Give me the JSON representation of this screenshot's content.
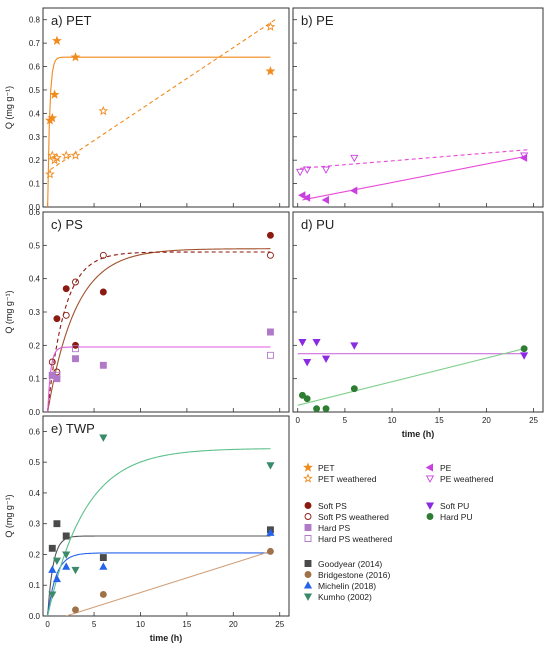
{
  "chart_data": [
    {
      "id": "a",
      "type": "scatter",
      "panel_label": "a) PET",
      "ylabel": "Q (mg g⁻¹)",
      "xlabel": "",
      "xlim": [
        -0.5,
        26
      ],
      "ylim": [
        0,
        0.85
      ],
      "xticks": [
        0,
        5,
        10,
        15,
        20,
        25
      ],
      "show_xticklabels": false,
      "yticks": [
        0,
        0.1,
        0.2,
        0.3,
        0.4,
        0.5,
        0.6,
        0.7,
        0.8
      ],
      "series": [
        {
          "name": "PET",
          "marker": "star",
          "filled": true,
          "color": "#f28a1e",
          "points": [
            [
              0.25,
              0.37
            ],
            [
              0.5,
              0.38
            ],
            [
              0.75,
              0.48
            ],
            [
              1,
              0.71
            ],
            [
              3,
              0.64
            ],
            [
              24,
              0.58
            ]
          ]
        },
        {
          "name": "PET weathered",
          "marker": "star",
          "filled": false,
          "color": "#f28a1e",
          "points": [
            [
              0.25,
              0.14
            ],
            [
              0.5,
              0.22
            ],
            [
              0.75,
              0.2
            ],
            [
              1,
              0.21
            ],
            [
              2,
              0.22
            ],
            [
              3,
              0.22
            ],
            [
              6,
              0.41
            ],
            [
              24,
              0.77
            ]
          ]
        }
      ],
      "fits": [
        {
          "kind": "exp",
          "qmax": 0.64,
          "k": 4.5,
          "color": "#f28a1e",
          "dash": false
        },
        {
          "kind": "linear",
          "from": [
            0.3,
            0.16
          ],
          "to": [
            24.5,
            0.8
          ],
          "color": "#f28a1e",
          "dash": true
        }
      ]
    },
    {
      "id": "b",
      "type": "scatter",
      "panel_label": "b) PE",
      "ylabel": "",
      "xlabel": "",
      "xlim": [
        -0.5,
        26
      ],
      "ylim": [
        0,
        0.85
      ],
      "xticks": [
        0,
        5,
        10,
        15,
        20,
        25
      ],
      "show_xticklabels": false,
      "show_yticklabels": false,
      "yticks": [
        0,
        0.1,
        0.2,
        0.3,
        0.4,
        0.5,
        0.6,
        0.7,
        0.8
      ],
      "series": [
        {
          "name": "PE",
          "marker": "triangle-left",
          "filled": true,
          "color": "#c940e0",
          "points": [
            [
              0.5,
              0.05
            ],
            [
              1,
              0.04
            ],
            [
              3,
              0.03
            ],
            [
              6,
              0.07
            ],
            [
              24,
              0.21
            ]
          ]
        },
        {
          "name": "PE weathered",
          "marker": "triangle-down",
          "filled": false,
          "color": "#c940e0",
          "points": [
            [
              0.25,
              0.15
            ],
            [
              1,
              0.16
            ],
            [
              3,
              0.16
            ],
            [
              6,
              0.21
            ],
            [
              24,
              0.22
            ]
          ]
        }
      ],
      "fits": [
        {
          "kind": "linear",
          "from": [
            0.5,
            0.03
          ],
          "to": [
            24,
            0.215
          ],
          "color": "#e84ad8",
          "dash": false
        },
        {
          "kind": "linear",
          "from": [
            0.25,
            0.165
          ],
          "to": [
            24.5,
            0.245
          ],
          "color": "#e84ad8",
          "dash": true
        }
      ]
    },
    {
      "id": "c",
      "type": "scatter",
      "panel_label": "c) PS",
      "ylabel": "Q (mg g⁻¹)",
      "xlabel": "",
      "xlim": [
        -0.5,
        26
      ],
      "ylim": [
        0,
        0.6
      ],
      "xticks": [
        0,
        5,
        10,
        15,
        20,
        25
      ],
      "show_xticklabels": false,
      "yticks": [
        0,
        0.1,
        0.2,
        0.3,
        0.4,
        0.5,
        0.6
      ],
      "series": [
        {
          "name": "Soft PS",
          "marker": "circle",
          "filled": true,
          "color": "#8b1a10",
          "points": [
            [
              1,
              0.28
            ],
            [
              2,
              0.37
            ],
            [
              3,
              0.2
            ],
            [
              6,
              0.36
            ],
            [
              24,
              0.53
            ]
          ]
        },
        {
          "name": "Soft PS weathered",
          "marker": "circle",
          "filled": false,
          "color": "#8b1a10",
          "points": [
            [
              0.5,
              0.15
            ],
            [
              1,
              0.12
            ],
            [
              2,
              0.29
            ],
            [
              3,
              0.39
            ],
            [
              6,
              0.47
            ],
            [
              24,
              0.47
            ]
          ]
        },
        {
          "name": "Hard PS",
          "marker": "square",
          "filled": true,
          "color": "#b07ac8",
          "points": [
            [
              0.5,
              0.11
            ],
            [
              1,
              0.1
            ],
            [
              3,
              0.16
            ],
            [
              6,
              0.14
            ],
            [
              24,
              0.24
            ]
          ]
        },
        {
          "name": "Hard PS weathered",
          "marker": "square",
          "filled": false,
          "color": "#b07ac8",
          "points": [
            [
              0.5,
              0.11
            ],
            [
              1,
              0.11
            ],
            [
              3,
              0.19
            ],
            [
              24,
              0.17
            ]
          ]
        }
      ],
      "fits": [
        {
          "kind": "exp",
          "qmax": 0.49,
          "k": 0.33,
          "color": "#a0522d",
          "dash": false
        },
        {
          "kind": "exp",
          "qmax": 0.48,
          "k": 0.55,
          "color": "#8b1a10",
          "dash": true
        },
        {
          "kind": "exp",
          "qmax": 0.195,
          "k": 3.0,
          "color": "#e058e0",
          "dash": false
        }
      ]
    },
    {
      "id": "d",
      "type": "scatter",
      "panel_label": "d) PU",
      "ylabel": "",
      "xlabel": "time (h)",
      "xlim": [
        -0.5,
        26
      ],
      "ylim": [
        0,
        0.6
      ],
      "xticks": [
        0,
        5,
        10,
        15,
        20,
        25
      ],
      "show_xticklabels": true,
      "show_yticklabels": false,
      "yticks": [
        0,
        0.1,
        0.2,
        0.3,
        0.4,
        0.5,
        0.6
      ],
      "series": [
        {
          "name": "Soft PU",
          "marker": "triangle-down",
          "filled": true,
          "color": "#8a2be2",
          "points": [
            [
              0.5,
              0.21
            ],
            [
              1,
              0.15
            ],
            [
              2,
              0.21
            ],
            [
              3,
              0.16
            ],
            [
              6,
              0.2
            ],
            [
              24,
              0.17
            ]
          ]
        },
        {
          "name": "Hard PU",
          "marker": "circle",
          "filled": true,
          "color": "#2e7d32",
          "points": [
            [
              0.5,
              0.05
            ],
            [
              1,
              0.04
            ],
            [
              2,
              0.01
            ],
            [
              3,
              0.01
            ],
            [
              6,
              0.07
            ],
            [
              24,
              0.19
            ]
          ]
        }
      ],
      "fits": [
        {
          "kind": "linear",
          "from": [
            0,
            0.175
          ],
          "to": [
            24,
            0.175
          ],
          "color": "#d070e0",
          "dash": false
        },
        {
          "kind": "linear",
          "from": [
            0,
            0.02
          ],
          "to": [
            24,
            0.19
          ],
          "color": "#7fcf8a",
          "dash": false
        }
      ]
    },
    {
      "id": "e",
      "type": "scatter",
      "panel_label": "e) TWP",
      "ylabel": "Q (mg g⁻¹)",
      "xlabel": "time (h)",
      "xlim": [
        -0.5,
        26
      ],
      "ylim": [
        0,
        0.65
      ],
      "xticks": [
        0,
        5,
        10,
        15,
        20,
        25
      ],
      "show_xticklabels": true,
      "yticks": [
        0,
        0.1,
        0.2,
        0.3,
        0.4,
        0.5,
        0.6
      ],
      "series": [
        {
          "name": "Goodyear (2014)",
          "marker": "square",
          "filled": true,
          "color": "#4a4a4a",
          "points": [
            [
              0.5,
              0.22
            ],
            [
              1,
              0.3
            ],
            [
              2,
              0.26
            ],
            [
              6,
              0.19
            ],
            [
              24,
              0.28
            ]
          ]
        },
        {
          "name": "Bridgestone (2016)",
          "marker": "circle",
          "filled": true,
          "color": "#a0724a",
          "points": [
            [
              3,
              0.02
            ],
            [
              6,
              0.07
            ],
            [
              24,
              0.21
            ]
          ]
        },
        {
          "name": "Michelin (2018)",
          "marker": "triangle-up",
          "filled": true,
          "color": "#2563eb",
          "points": [
            [
              0.5,
              0.15
            ],
            [
              1,
              0.12
            ],
            [
              2,
              0.16
            ],
            [
              6,
              0.16
            ],
            [
              24,
              0.27
            ]
          ]
        },
        {
          "name": "Kumho (2002)",
          "marker": "triangle-down",
          "filled": true,
          "color": "#3a8a6a",
          "points": [
            [
              0.5,
              0.07
            ],
            [
              1,
              0.18
            ],
            [
              2,
              0.2
            ],
            [
              3,
              0.15
            ],
            [
              6,
              0.58
            ],
            [
              24,
              0.49
            ]
          ]
        }
      ],
      "fits": [
        {
          "kind": "exp",
          "qmax": 0.26,
          "k": 1.7,
          "color": "#555555",
          "dash": false
        },
        {
          "kind": "exp",
          "qmax": 0.205,
          "k": 1.1,
          "color": "#2563eb",
          "dash": false
        },
        {
          "kind": "exp",
          "qmax": 0.545,
          "k": 0.25,
          "color": "#5cc08a",
          "dash": false
        },
        {
          "kind": "linear",
          "from": [
            2,
            0.0
          ],
          "to": [
            24,
            0.21
          ],
          "color": "#d2a07a",
          "dash": false
        }
      ]
    }
  ],
  "legend_groups": [
    {
      "items": [
        {
          "label": "PET",
          "marker": "star",
          "filled": true,
          "color": "#f28a1e"
        },
        {
          "label": "PET weathered",
          "marker": "star",
          "filled": false,
          "color": "#f28a1e"
        }
      ]
    },
    {
      "items": [
        {
          "label": "PE",
          "marker": "triangle-left",
          "filled": true,
          "color": "#c940e0"
        },
        {
          "label": "PE weathered",
          "marker": "triangle-down",
          "filled": false,
          "color": "#c940e0"
        }
      ]
    },
    {
      "items": [
        {
          "label": "Soft PS",
          "marker": "circle",
          "filled": true,
          "color": "#8b1a10"
        },
        {
          "label": "Soft PS weathered",
          "marker": "circle",
          "filled": false,
          "color": "#8b1a10"
        },
        {
          "label": "Hard PS",
          "marker": "square",
          "filled": true,
          "color": "#b07ac8"
        },
        {
          "label": "Hard PS weathered",
          "marker": "square",
          "filled": false,
          "color": "#b07ac8"
        }
      ]
    },
    {
      "items": [
        {
          "label": "Soft PU",
          "marker": "triangle-down",
          "filled": true,
          "color": "#8a2be2"
        },
        {
          "label": "Hard PU",
          "marker": "circle",
          "filled": true,
          "color": "#2e7d32"
        }
      ]
    },
    {
      "items": [
        {
          "label": "Goodyear (2014)",
          "marker": "square",
          "filled": true,
          "color": "#4a4a4a"
        },
        {
          "label": "Bridgestone (2016)",
          "marker": "circle",
          "filled": true,
          "color": "#a0724a"
        },
        {
          "label": "Michelin (2018)",
          "marker": "triangle-up",
          "filled": true,
          "color": "#2563eb"
        },
        {
          "label": "Kumho (2002)",
          "marker": "triangle-down",
          "filled": true,
          "color": "#3a8a6a"
        }
      ]
    }
  ]
}
